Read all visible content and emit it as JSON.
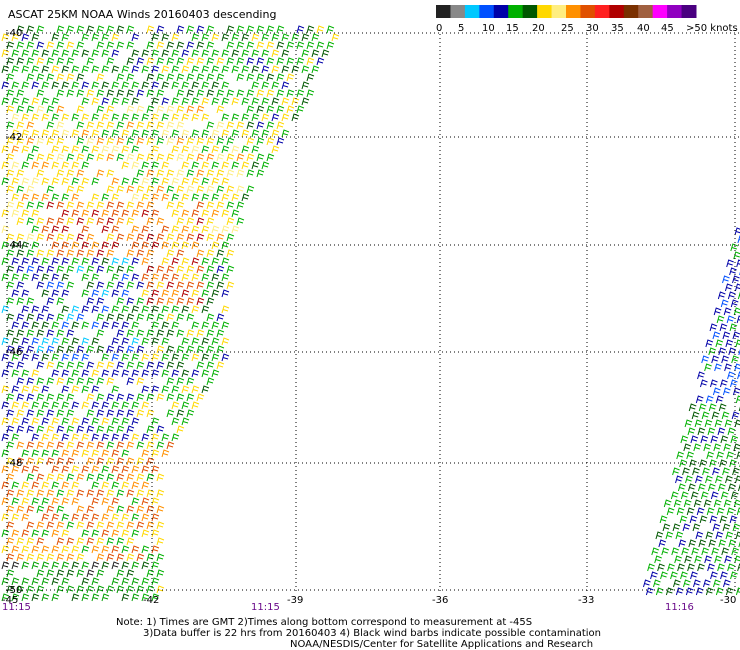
{
  "title": "ASCAT 25KM NOAA Winds 20160403 descending",
  "legend": {
    "labels": [
      "0",
      "5",
      "10",
      "15",
      "20",
      "25",
      "30",
      "35",
      "40",
      "45",
      ">50 knots"
    ],
    "colors": [
      "#222222",
      "#888888",
      "#00c8ff",
      "#0050ff",
      "#0000a8",
      "#00b000",
      "#005800",
      "#ffd800",
      "#ffee80",
      "#ff9000",
      "#e05000",
      "#ff2020",
      "#b00000",
      "#7a3000",
      "#a06040",
      "#ff00ff",
      "#9000c0",
      "#4a0080"
    ]
  },
  "axes": {
    "lat_labels": [
      "-40",
      "-42",
      "-44",
      "-46",
      "-48",
      "-50"
    ],
    "lon_labels": [
      "-45",
      "-42",
      "-39",
      "-36",
      "-33",
      "-30"
    ],
    "time_labels": [
      "11:15",
      "11:15",
      "11:16"
    ]
  },
  "notes": {
    "line1": "Note: 1) Times are GMT 2)Times along bottom correspond to measurement at -45S",
    "line2": "3)Data buffer is 22 hrs from 20160403 4) Black wind barbs indicate possible contamination",
    "line3": "NOAA/NESDIS/Center for Satellite Applications and Research"
  }
}
